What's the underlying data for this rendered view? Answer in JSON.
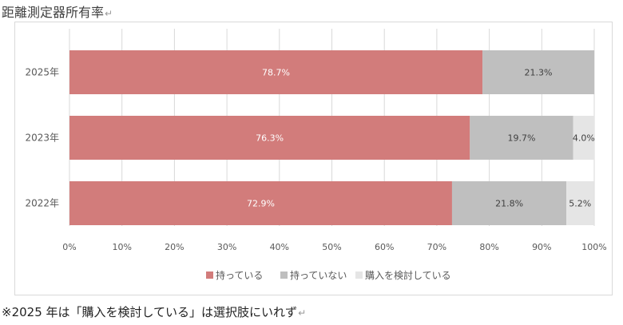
{
  "header": {
    "title": "距離測定器所有率"
  },
  "footnote": "※2025 年は「購入を検討している」は選択肢にいれず",
  "colors": {
    "own": "#d27c7b",
    "not_own": "#bfbfbf",
    "considering": "#e5e5e5",
    "grid": "#d9d9d9"
  },
  "chart_data": {
    "type": "bar",
    "orientation": "horizontal",
    "stacked": "percent",
    "title": "距離測定器所有率",
    "categories": [
      "2025年",
      "2023年",
      "2022年"
    ],
    "series": [
      {
        "name": "持っている",
        "values": [
          78.7,
          76.3,
          72.9
        ],
        "labels": [
          "78.7%",
          "76.3%",
          "72.9%"
        ]
      },
      {
        "name": "持っていない",
        "values": [
          21.3,
          19.7,
          21.8
        ],
        "labels": [
          "21.3%",
          "19.7%",
          "21.8%"
        ]
      },
      {
        "name": "購入を検討している",
        "values": [
          0,
          4.0,
          5.2
        ],
        "labels": [
          "",
          "4.0%",
          "5.2%"
        ]
      }
    ],
    "xlim": [
      0,
      100
    ],
    "xticks": [
      "0%",
      "10%",
      "20%",
      "30%",
      "40%",
      "50%",
      "60%",
      "70%",
      "80%",
      "90%",
      "100%"
    ],
    "grid": true,
    "legend": "bottom"
  }
}
